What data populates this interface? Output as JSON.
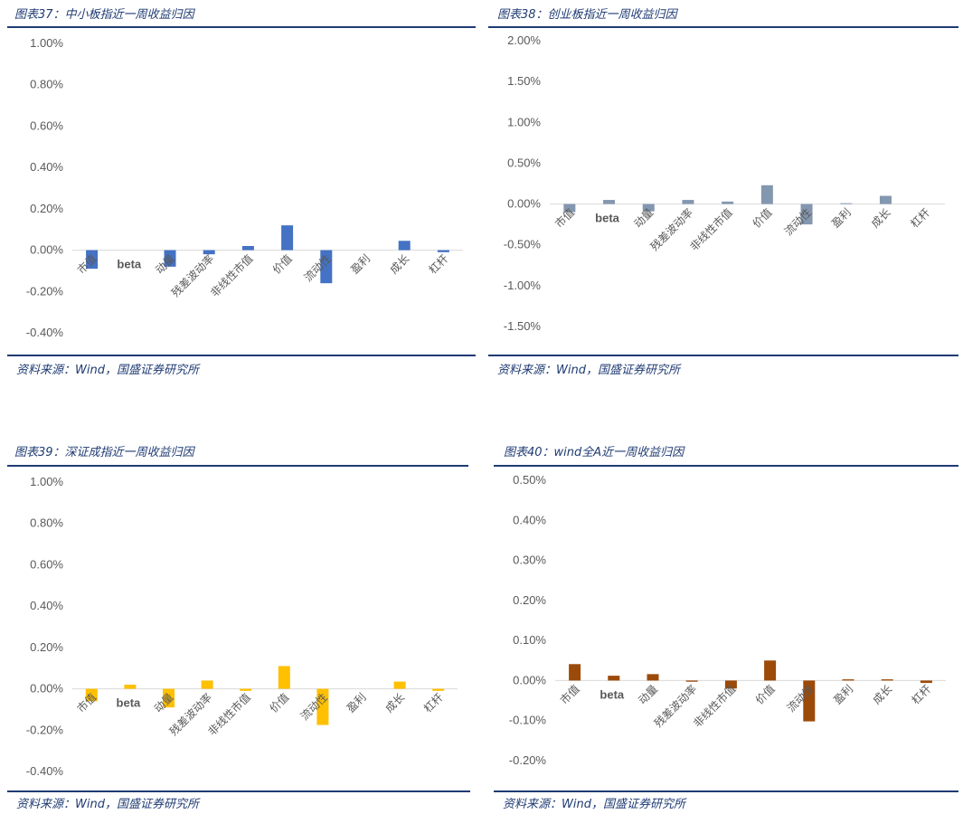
{
  "source_text": "资料来源：Wind，国盛证券研究所",
  "chart_data": [
    {
      "type": "bar",
      "title": "图表37：中小板指近一周收益归因",
      "color": "#4472c4",
      "categories": [
        "市值",
        "beta",
        "动量",
        "残差波动率",
        "非线性市值",
        "价值",
        "流动性",
        "盈利",
        "成长",
        "杠杆"
      ],
      "values": [
        -0.09,
        0.0,
        -0.08,
        -0.02,
        0.02,
        0.12,
        -0.16,
        0.0,
        0.045,
        -0.01
      ],
      "ylim": [
        -0.4,
        1.0
      ],
      "yticks": [
        -0.4,
        -0.2,
        0.0,
        0.2,
        0.4,
        0.6,
        0.8,
        1.0
      ],
      "ytick_labels": [
        "-0.40%",
        "-0.20%",
        "0.00%",
        "0.20%",
        "0.40%",
        "0.60%",
        "0.80%",
        "1.00%"
      ],
      "xlabel": "",
      "ylabel": ""
    },
    {
      "type": "bar",
      "title": "图表38：创业板指近一周收益归因",
      "color": "#8497b0",
      "categories": [
        "市值",
        "beta",
        "动量",
        "残差波动率",
        "非线性市值",
        "价值",
        "流动性",
        "盈利",
        "成长",
        "杠杆"
      ],
      "values": [
        -0.1,
        0.05,
        -0.09,
        0.05,
        0.03,
        0.23,
        -0.25,
        0.01,
        0.1,
        0.0
      ],
      "ylim": [
        -1.5,
        2.0
      ],
      "yticks": [
        -1.5,
        -1.0,
        -0.5,
        0.0,
        0.5,
        1.0,
        1.5,
        2.0
      ],
      "ytick_labels": [
        "-1.50%",
        "-1.00%",
        "-0.50%",
        "0.00%",
        "0.50%",
        "1.00%",
        "1.50%",
        "2.00%"
      ],
      "xlabel": "",
      "ylabel": ""
    },
    {
      "type": "bar",
      "title": "图表39：深证成指近一周收益归因",
      "color": "#ffc000",
      "categories": [
        "市值",
        "beta",
        "动量",
        "残差波动率",
        "非线性市值",
        "价值",
        "流动性",
        "盈利",
        "成长",
        "杠杆"
      ],
      "values": [
        -0.06,
        0.02,
        -0.09,
        0.04,
        -0.01,
        0.11,
        -0.175,
        0.0,
        0.035,
        -0.01
      ],
      "ylim": [
        -0.4,
        1.0
      ],
      "yticks": [
        -0.4,
        -0.2,
        0.0,
        0.2,
        0.4,
        0.6,
        0.8,
        1.0
      ],
      "ytick_labels": [
        "-0.40%",
        "-0.20%",
        "0.00%",
        "0.20%",
        "0.40%",
        "0.60%",
        "0.80%",
        "1.00%"
      ],
      "xlabel": "",
      "ylabel": ""
    },
    {
      "type": "bar",
      "title": "图表40：wind全A近一周收益归因",
      "color": "#9c4a0a",
      "categories": [
        "市值",
        "beta",
        "动量",
        "残差波动率",
        "非线性市值",
        "价值",
        "流动性",
        "盈利",
        "成长",
        "杠杆"
      ],
      "values": [
        0.041,
        0.012,
        0.016,
        -0.003,
        -0.02,
        0.05,
        -0.102,
        0.003,
        0.003,
        -0.006
      ],
      "ylim": [
        -0.2,
        0.5
      ],
      "yticks": [
        -0.2,
        -0.1,
        0.0,
        0.1,
        0.2,
        0.3,
        0.4,
        0.5
      ],
      "ytick_labels": [
        "-0.20%",
        "-0.10%",
        "0.00%",
        "0.10%",
        "0.20%",
        "0.30%",
        "0.40%",
        "0.50%"
      ],
      "xlabel": "",
      "ylabel": ""
    }
  ]
}
